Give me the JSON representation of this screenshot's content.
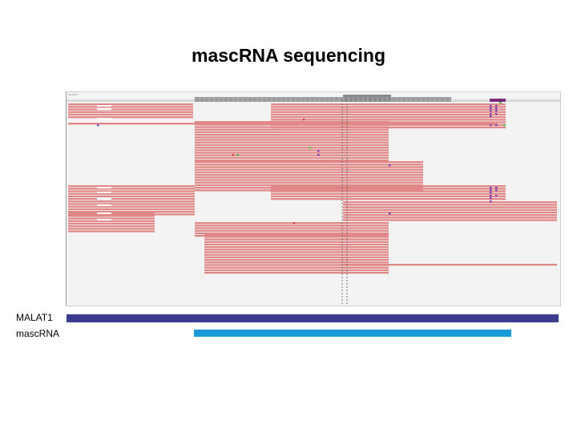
{
  "slide": {
    "title": "mascRNA sequencing"
  },
  "igv": {
    "header_text": "chr11 kb"
  },
  "tracks": [
    {
      "label": "MALAT1",
      "color": "#3b3b8f"
    },
    {
      "label": "mascRNA",
      "color": "#1a9bd7"
    }
  ],
  "colors": {
    "read": "#e28787",
    "read_edge": "#d06f6f",
    "coverage": "#9b9b9b",
    "mismatch_purple": "#7a3fb0",
    "mismatch_green": "#5fb84a",
    "mismatch_red": "#d13030",
    "clip_white": "#ffffff"
  }
}
